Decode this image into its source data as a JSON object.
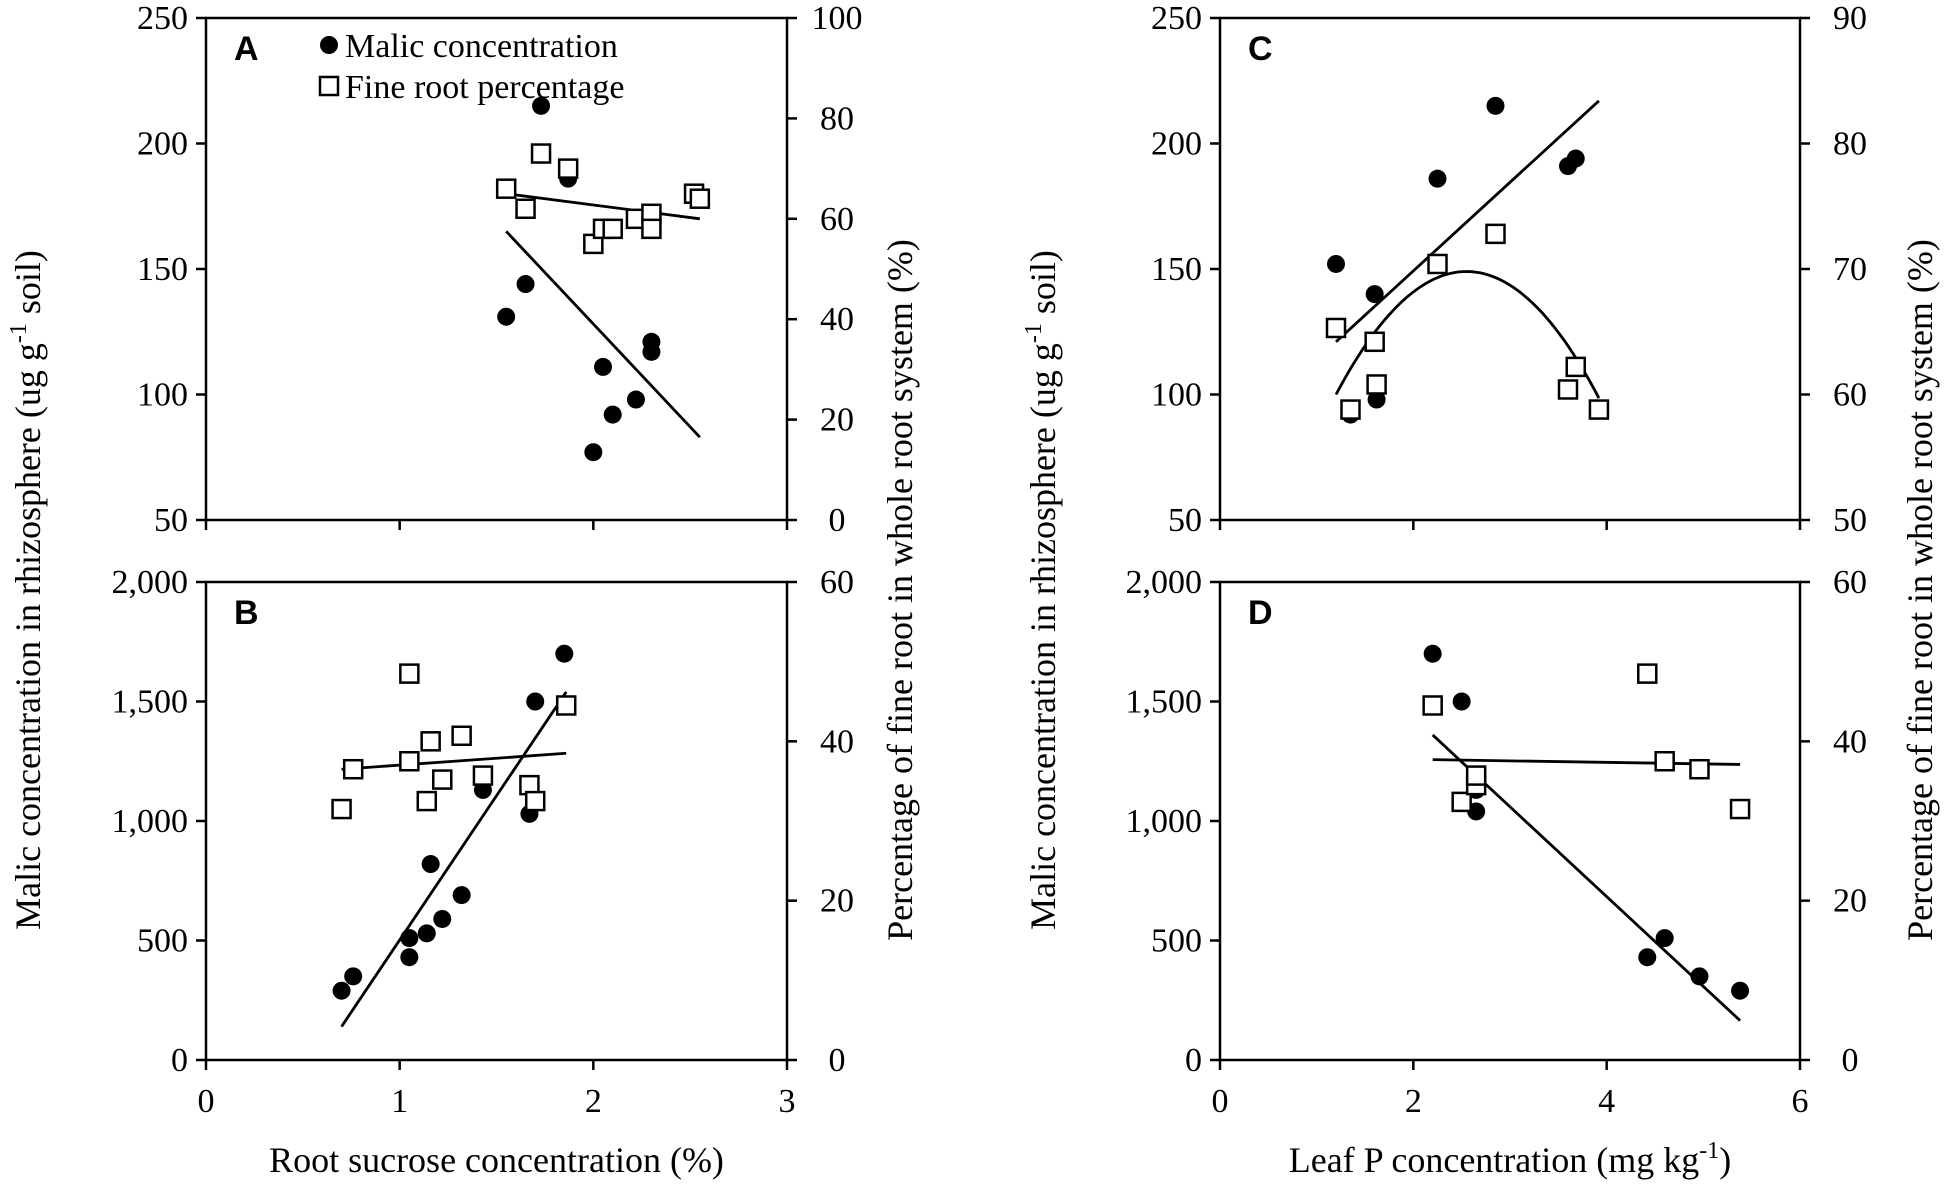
{
  "chart_data": [
    {
      "type": "scatter",
      "panel_label": "A",
      "xlim": [
        0,
        3
      ],
      "ylim_left": [
        50,
        250
      ],
      "ylim_right": [
        0,
        100
      ],
      "left_ticks": [
        "50",
        "100",
        "150",
        "200",
        "250"
      ],
      "right_ticks": [
        "0",
        "20",
        "40",
        "60",
        "80",
        "100"
      ],
      "legend": [
        "Malic concentration",
        "Fine root percentage"
      ],
      "series": [
        {
          "name": "Malic concentration",
          "axis": "left",
          "x": [
            1.55,
            1.65,
            1.73,
            1.87,
            2.0,
            2.05,
            2.1,
            2.22,
            2.3,
            2.3
          ],
          "y": [
            131,
            144,
            215,
            186,
            77,
            111,
            92,
            98,
            121,
            117
          ]
        },
        {
          "name": "Fine root percentage",
          "axis": "right",
          "x": [
            1.55,
            1.65,
            1.73,
            1.87,
            2.0,
            2.05,
            2.1,
            2.22,
            2.3,
            2.3,
            2.52,
            2.55
          ],
          "y": [
            66,
            62,
            73,
            70,
            55,
            58,
            58,
            60,
            61,
            58,
            65,
            64
          ]
        }
      ],
      "fits": [
        {
          "axis": "left",
          "kind": "line",
          "x": [
            1.55,
            2.55
          ],
          "y": [
            165,
            83
          ]
        },
        {
          "axis": "right",
          "kind": "line",
          "x": [
            1.55,
            2.55
          ],
          "y": [
            65,
            60
          ]
        }
      ]
    },
    {
      "type": "scatter",
      "panel_label": "B",
      "xlim": [
        0,
        3
      ],
      "ylim_left": [
        0,
        2000
      ],
      "ylim_right": [
        0,
        60
      ],
      "left_ticks": [
        "0",
        "500",
        "1,000",
        "1,500",
        "2,000"
      ],
      "right_ticks": [
        "0",
        "20",
        "40",
        "60"
      ],
      "xticks": [
        "0",
        "1",
        "2",
        "3"
      ],
      "xlabel": "Root sucrose concentration (%)",
      "series": [
        {
          "name": "Malic concentration",
          "axis": "left",
          "x": [
            0.7,
            0.76,
            1.05,
            1.05,
            1.14,
            1.16,
            1.22,
            1.32,
            1.43,
            1.67,
            1.7,
            1.85
          ],
          "y": [
            290,
            350,
            510,
            430,
            530,
            820,
            590,
            690,
            1130,
            1030,
            1500,
            1700
          ]
        },
        {
          "name": "Fine root percentage",
          "axis": "right",
          "x": [
            0.7,
            0.76,
            1.05,
            1.05,
            1.14,
            1.16,
            1.22,
            1.32,
            1.43,
            1.67,
            1.7,
            1.86
          ],
          "y": [
            31.5,
            36.5,
            48.5,
            37.5,
            32.5,
            40,
            35.2,
            40.7,
            35.7,
            34.5,
            32.5,
            44.5
          ]
        }
      ],
      "fits": [
        {
          "axis": "left",
          "kind": "line",
          "x": [
            0.7,
            1.86
          ],
          "y": [
            140,
            1540
          ]
        },
        {
          "axis": "right",
          "kind": "line",
          "x": [
            0.7,
            1.86
          ],
          "y": [
            36.5,
            38.5
          ]
        }
      ]
    },
    {
      "type": "scatter",
      "panel_label": "C",
      "xlim": [
        0,
        6
      ],
      "ylim_left": [
        50,
        250
      ],
      "ylim_right": [
        50,
        90
      ],
      "left_ticks": [
        "50",
        "100",
        "150",
        "200",
        "250"
      ],
      "right_ticks": [
        "50",
        "60",
        "70",
        "80",
        "90"
      ],
      "series": [
        {
          "name": "Malic concentration",
          "axis": "left",
          "x": [
            1.2,
            1.35,
            1.6,
            1.62,
            2.25,
            2.85,
            3.6,
            3.68
          ],
          "y": [
            152,
            92,
            140,
            98,
            186,
            215,
            191,
            194
          ]
        },
        {
          "name": "Fine root percentage",
          "axis": "right",
          "x": [
            1.2,
            1.35,
            1.6,
            1.62,
            2.25,
            2.85,
            3.6,
            3.68,
            3.92
          ],
          "y": [
            65.3,
            58.8,
            64.2,
            60.8,
            70.4,
            72.8,
            60.4,
            62.2,
            58.8
          ]
        }
      ],
      "fits": [
        {
          "axis": "left",
          "kind": "line",
          "x": [
            1.2,
            3.92
          ],
          "y": [
            121,
            217
          ]
        },
        {
          "axis": "right",
          "kind": "quadratic",
          "x": [
            1.2,
            3.92
          ],
          "vertex": [
            2.55,
            69.8
          ],
          "y_at_ends": [
            60,
            58.8
          ]
        }
      ]
    },
    {
      "type": "scatter",
      "panel_label": "D",
      "xlim": [
        0,
        6
      ],
      "ylim_left": [
        0,
        2000
      ],
      "ylim_right": [
        0,
        60
      ],
      "left_ticks": [
        "0",
        "500",
        "1,000",
        "1,500",
        "2,000"
      ],
      "right_ticks": [
        "0",
        "20",
        "40",
        "60"
      ],
      "xticks": [
        "0",
        "2",
        "4",
        "6"
      ],
      "xlabel": "Leaf P concentration (mg kg",
      "xlabel_sup": "-1",
      "xlabel_end": ")",
      "series": [
        {
          "name": "Malic concentration",
          "axis": "left",
          "x": [
            2.2,
            2.5,
            2.65,
            2.65,
            2.65,
            4.42,
            4.6,
            4.96,
            5.38
          ],
          "y": [
            1700,
            1500,
            1180,
            1130,
            1040,
            430,
            510,
            350,
            290
          ]
        },
        {
          "name": "Fine root percentage",
          "axis": "right",
          "x": [
            2.2,
            2.5,
            2.65,
            2.65,
            4.42,
            4.6,
            4.96,
            5.38
          ],
          "y": [
            44.5,
            32.4,
            34.5,
            35.7,
            48.5,
            37.5,
            36.5,
            31.5
          ]
        }
      ],
      "fits": [
        {
          "axis": "left",
          "kind": "line",
          "x": [
            2.2,
            5.38
          ],
          "y": [
            1360,
            165
          ]
        },
        {
          "axis": "right",
          "kind": "line",
          "x": [
            2.2,
            5.38
          ],
          "y": [
            37.7,
            37.1
          ]
        }
      ]
    }
  ],
  "axis_labels": {
    "left_main": "Malic concentration in rhizosphere (ug g",
    "left_sup": "-1",
    "left_end": " soil)",
    "right": "Percentage of fine root in whole root system (%)"
  }
}
